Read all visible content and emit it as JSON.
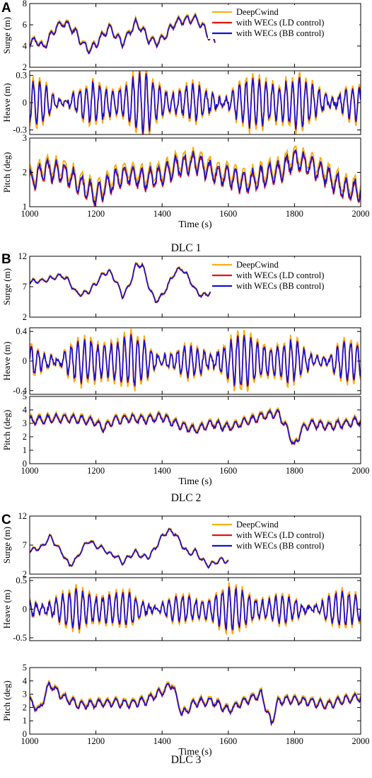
{
  "colors": {
    "deepcwind": "#F5B014",
    "ld": "#E81010",
    "bb": "#1010D8",
    "axis": "#000000"
  },
  "legend": [
    "DeepCwind",
    "with WECs (LD control)",
    "with WECs (BB control)"
  ],
  "xlabel": "Time (s)",
  "xticks": [
    "1000",
    "1200",
    "1400",
    "1600",
    "1800",
    "2000"
  ],
  "chart_data": [
    {
      "type": "line",
      "panel": "A",
      "caption": "DLC 1",
      "x_range": [
        1000,
        2000
      ],
      "subplots": [
        {
          "name": "surge",
          "ylabel": "Surge (m)",
          "ylim": [
            2,
            8
          ],
          "yticks": [
            "2",
            "4",
            "6",
            "8"
          ],
          "legend": "top-right",
          "keypoints": [
            [
              1000,
              4.2
            ],
            [
              1020,
              4.6
            ],
            [
              1040,
              3.8
            ],
            [
              1060,
              4.8
            ],
            [
              1080,
              5.8
            ],
            [
              1100,
              6.2
            ],
            [
              1120,
              5.9
            ],
            [
              1140,
              5.2
            ],
            [
              1160,
              4.2
            ],
            [
              1180,
              3.6
            ],
            [
              1200,
              4.2
            ],
            [
              1220,
              5.0
            ],
            [
              1240,
              5.8
            ],
            [
              1260,
              5.0
            ],
            [
              1280,
              4.3
            ],
            [
              1300,
              5.2
            ],
            [
              1320,
              6.2
            ],
            [
              1340,
              5.6
            ],
            [
              1360,
              4.6
            ],
            [
              1380,
              4.3
            ],
            [
              1400,
              4.6
            ],
            [
              1420,
              5.4
            ],
            [
              1440,
              6.2
            ],
            [
              1460,
              6.4
            ],
            [
              1480,
              6.5
            ],
            [
              1500,
              6.6
            ],
            [
              1520,
              6.0
            ],
            [
              1540,
              5.0
            ],
            [
              1560,
              4.4
            ]
          ]
        },
        {
          "name": "heave",
          "ylabel": "Heave (m)",
          "ylim": [
            -0.35,
            0.35
          ],
          "yticks": [
            "-0.3",
            "0",
            "0.3"
          ],
          "amplitude": 0.3
        },
        {
          "name": "pitch",
          "ylabel": "Pitch (deg)",
          "ylim": [
            1,
            3
          ],
          "yticks": [
            "1",
            "2",
            "3"
          ],
          "keypoints": [
            [
              1000,
              1.7
            ],
            [
              1050,
              2.1
            ],
            [
              1100,
              2.0
            ],
            [
              1150,
              1.7
            ],
            [
              1200,
              1.35
            ],
            [
              1250,
              1.75
            ],
            [
              1300,
              1.95
            ],
            [
              1350,
              1.8
            ],
            [
              1400,
              1.9
            ],
            [
              1450,
              2.2
            ],
            [
              1500,
              2.3
            ],
            [
              1550,
              2.0
            ],
            [
              1600,
              1.9
            ],
            [
              1650,
              1.7
            ],
            [
              1700,
              1.9
            ],
            [
              1750,
              2.0
            ],
            [
              1800,
              2.4
            ],
            [
              1850,
              2.2
            ],
            [
              1900,
              1.9
            ],
            [
              1950,
              1.5
            ],
            [
              2000,
              1.5
            ]
          ]
        }
      ]
    },
    {
      "type": "line",
      "panel": "B",
      "caption": "DLC 2",
      "x_range": [
        1000,
        2000
      ],
      "subplots": [
        {
          "name": "surge",
          "ylabel": "Surge (m)",
          "ylim": [
            2,
            12
          ],
          "yticks": [
            "2",
            "7",
            "12"
          ],
          "legend": "top-right",
          "keypoints": [
            [
              1000,
              7.8
            ],
            [
              1040,
              8.0
            ],
            [
              1080,
              8.6
            ],
            [
              1100,
              8.8
            ],
            [
              1120,
              7.8
            ],
            [
              1140,
              6.0
            ],
            [
              1160,
              5.8
            ],
            [
              1180,
              6.3
            ],
            [
              1200,
              7.5
            ],
            [
              1220,
              9.0
            ],
            [
              1240,
              9.5
            ],
            [
              1260,
              8.0
            ],
            [
              1280,
              5.5
            ],
            [
              1300,
              7.0
            ],
            [
              1320,
              10.5
            ],
            [
              1340,
              10.6
            ],
            [
              1360,
              7.0
            ],
            [
              1380,
              4.6
            ],
            [
              1400,
              5.5
            ],
            [
              1420,
              7.5
            ],
            [
              1440,
              9.5
            ],
            [
              1460,
              10.0
            ],
            [
              1480,
              8.5
            ],
            [
              1500,
              6.5
            ],
            [
              1520,
              5.5
            ],
            [
              1540,
              5.8
            ],
            [
              1560,
              7.5
            ]
          ]
        },
        {
          "name": "heave",
          "ylabel": "Heave (m)",
          "ylim": [
            -0.45,
            0.45
          ],
          "yticks": [
            "-0.4",
            "0",
            "0.4"
          ],
          "amplitude": 0.35
        },
        {
          "name": "pitch",
          "ylabel": "Pitch (deg)",
          "ylim": [
            0,
            5
          ],
          "yticks": [
            "0",
            "1",
            "2",
            "3",
            "4",
            "5"
          ],
          "keypoints": [
            [
              1000,
              3.2
            ],
            [
              1050,
              3.3
            ],
            [
              1100,
              3.4
            ],
            [
              1150,
              3.3
            ],
            [
              1200,
              3.1
            ],
            [
              1220,
              2.6
            ],
            [
              1250,
              3.2
            ],
            [
              1300,
              3.4
            ],
            [
              1350,
              3.3
            ],
            [
              1400,
              3.5
            ],
            [
              1450,
              2.9
            ],
            [
              1500,
              2.5
            ],
            [
              1550,
              3.0
            ],
            [
              1600,
              2.7
            ],
            [
              1650,
              3.1
            ],
            [
              1700,
              3.5
            ],
            [
              1750,
              3.8
            ],
            [
              1780,
              2.5
            ],
            [
              1800,
              1.2
            ],
            [
              1820,
              2.5
            ],
            [
              1850,
              3.0
            ],
            [
              1900,
              2.8
            ],
            [
              1950,
              3.0
            ],
            [
              2000,
              3.2
            ]
          ]
        }
      ]
    },
    {
      "type": "line",
      "panel": "C",
      "caption": "DLC 3",
      "x_range": [
        1000,
        2000
      ],
      "subplots": [
        {
          "name": "surge",
          "ylabel": "Surge (m)",
          "ylim": [
            2,
            12
          ],
          "yticks": [
            "2",
            "7",
            "12"
          ],
          "legend": "top-right",
          "keypoints": [
            [
              1000,
              6.0
            ],
            [
              1040,
              6.8
            ],
            [
              1060,
              8.5
            ],
            [
              1080,
              7.0
            ],
            [
              1100,
              5.5
            ],
            [
              1120,
              3.5
            ],
            [
              1140,
              4.5
            ],
            [
              1160,
              6.5
            ],
            [
              1180,
              7.8
            ],
            [
              1200,
              6.8
            ],
            [
              1220,
              6.5
            ],
            [
              1240,
              5.5
            ],
            [
              1260,
              5.2
            ],
            [
              1280,
              4.0
            ],
            [
              1300,
              5.0
            ],
            [
              1320,
              5.8
            ],
            [
              1340,
              5.0
            ],
            [
              1360,
              5.0
            ],
            [
              1380,
              6.5
            ],
            [
              1400,
              8.5
            ],
            [
              1420,
              9.5
            ],
            [
              1440,
              9.0
            ],
            [
              1460,
              7.0
            ],
            [
              1480,
              5.5
            ],
            [
              1500,
              6.0
            ],
            [
              1520,
              4.5
            ],
            [
              1540,
              3.5
            ],
            [
              1560,
              4.0
            ],
            [
              1580,
              4.5
            ],
            [
              1600,
              4.2
            ]
          ]
        },
        {
          "name": "heave",
          "ylabel": "Heave (m)",
          "ylim": [
            -0.55,
            0.55
          ],
          "yticks": [
            "-0.5",
            "0",
            "0.5"
          ],
          "amplitude": 0.35
        },
        {
          "name": "pitch",
          "ylabel": "Pitch (deg)",
          "ylim": [
            0,
            5
          ],
          "yticks": [
            "0",
            "1",
            "2",
            "3",
            "4",
            "5"
          ],
          "keypoints": [
            [
              1000,
              2.5
            ],
            [
              1030,
              1.8
            ],
            [
              1060,
              3.8
            ],
            [
              1100,
              2.8
            ],
            [
              1150,
              2.2
            ],
            [
              1200,
              2.3
            ],
            [
              1250,
              2.4
            ],
            [
              1300,
              2.3
            ],
            [
              1350,
              2.5
            ],
            [
              1400,
              3.2
            ],
            [
              1430,
              3.8
            ],
            [
              1460,
              1.5
            ],
            [
              1500,
              2.4
            ],
            [
              1550,
              2.5
            ],
            [
              1600,
              1.8
            ],
            [
              1650,
              2.5
            ],
            [
              1700,
              3.0
            ],
            [
              1730,
              0.8
            ],
            [
              1750,
              2.5
            ],
            [
              1800,
              2.6
            ],
            [
              1850,
              2.4
            ],
            [
              1900,
              2.2
            ],
            [
              1950,
              2.6
            ],
            [
              2000,
              2.8
            ]
          ]
        }
      ]
    }
  ]
}
